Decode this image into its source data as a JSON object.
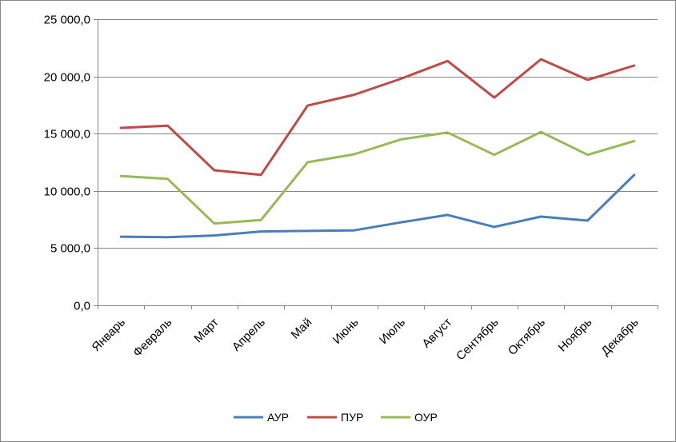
{
  "chart_data": {
    "type": "line",
    "title": "",
    "xlabel": "",
    "ylabel": "",
    "categories": [
      "Январь",
      "Февраль",
      "Март",
      "Апрель",
      "Май",
      "Июнь",
      "Июль",
      "Август",
      "Сентябрь",
      "Октябрь",
      "Ноябрь",
      "Декабрь"
    ],
    "ylim": [
      0,
      25000
    ],
    "yticks": [
      0,
      5000,
      10000,
      15000,
      20000,
      25000
    ],
    "ytick_labels": [
      "0,0",
      "5 000,0",
      "10 000,0",
      "15 000,0",
      "20 000,0",
      "25 000,0"
    ],
    "grid": "horizontal",
    "legend_position": "bottom",
    "series": [
      {
        "name": "АУР",
        "color": "#4a7ebb",
        "values": [
          6000,
          5950,
          6100,
          6450,
          6500,
          6550,
          7250,
          7900,
          6850,
          7750,
          7400,
          11400
        ]
      },
      {
        "name": "ПУР",
        "color": "#be4b48",
        "values": [
          15500,
          15700,
          11800,
          11400,
          17450,
          18400,
          19800,
          21350,
          18150,
          21500,
          19700,
          20950
        ]
      },
      {
        "name": "ОУР",
        "color": "#98b954",
        "values": [
          11300,
          11050,
          7150,
          7450,
          12500,
          13200,
          14500,
          15100,
          13150,
          15150,
          13150,
          14350
        ]
      }
    ]
  }
}
